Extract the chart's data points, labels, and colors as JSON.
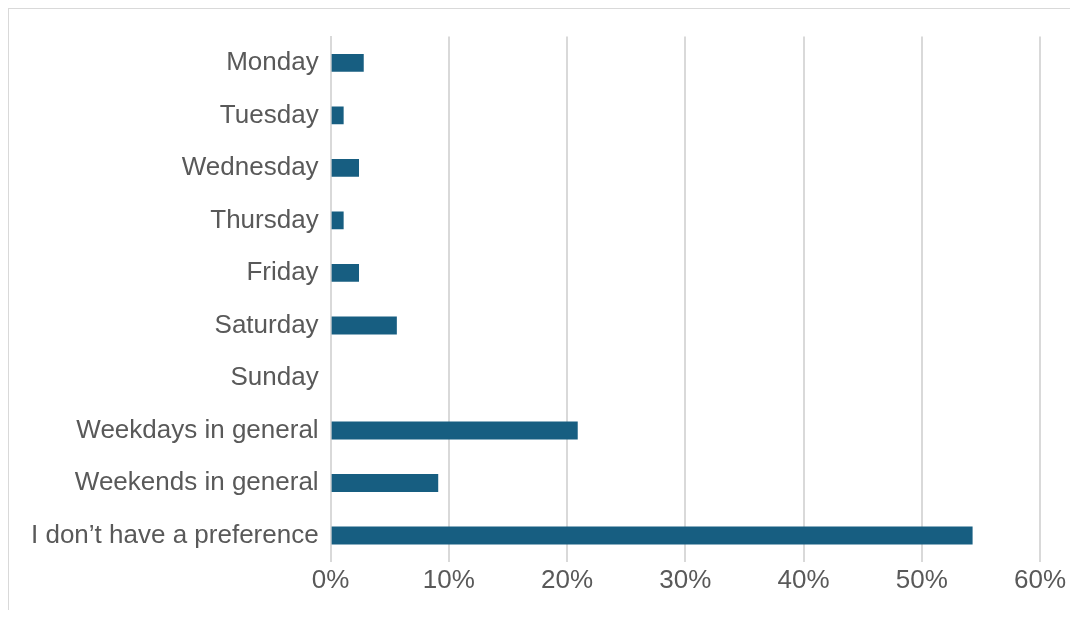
{
  "chart_data": {
    "type": "bar",
    "orientation": "horizontal",
    "categories": [
      "Monday",
      "Tuesday",
      "Wednesday",
      "Thursday",
      "Friday",
      "Saturday",
      "Sunday",
      "Weekdays in general",
      "Weekends in general",
      "I don’t have a preference"
    ],
    "values": [
      2.8,
      1.1,
      2.4,
      1.1,
      2.4,
      5.6,
      0,
      20.9,
      9.1,
      54.3
    ],
    "color": "#175e81",
    "xlim": [
      0,
      60
    ],
    "xticks": [
      {
        "value": 0,
        "label": "0%"
      },
      {
        "value": 10,
        "label": "10%"
      },
      {
        "value": 20,
        "label": "20%"
      },
      {
        "value": 30,
        "label": "30%"
      },
      {
        "value": 40,
        "label": "40%"
      },
      {
        "value": 50,
        "label": "50%"
      },
      {
        "value": 60,
        "label": "60%"
      }
    ],
    "grid": "x",
    "legend": false
  }
}
